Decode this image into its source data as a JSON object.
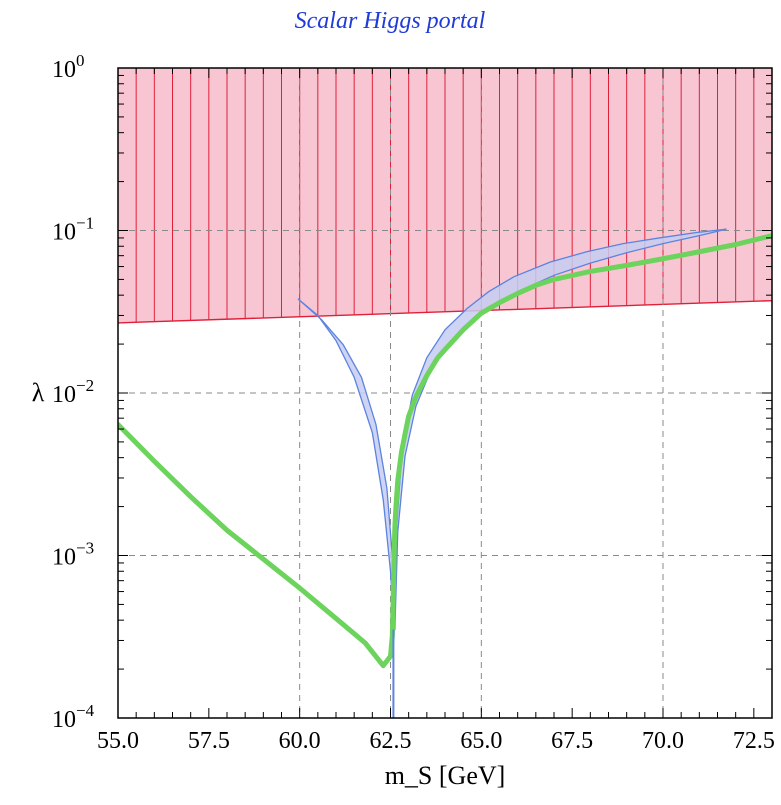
{
  "chart_data": {
    "type": "line",
    "title": "Scalar Higgs portal",
    "xlabel": "m_S [GeV]",
    "ylabel": "λ",
    "xlim": [
      55.0,
      73.0
    ],
    "ylim": [
      0.0001,
      1.0
    ],
    "yscale": "log",
    "grid": true,
    "x_ticks": [
      "55.0",
      "57.5",
      "60.0",
      "62.5",
      "65.0",
      "67.5",
      "70.0",
      "72.5"
    ],
    "y_ticks": [
      {
        "base": "10",
        "exp": "0"
      },
      {
        "base": "10",
        "exp": "−1"
      },
      {
        "base": "10",
        "exp": "−2"
      },
      {
        "base": "10",
        "exp": "−3"
      },
      {
        "base": "10",
        "exp": "−4"
      }
    ],
    "colors": {
      "excluded_fill": "#f7c6d2",
      "excluded_edge": "#e0203a",
      "band_fill": "#c7cdf2",
      "band_edge": "#5b83e0",
      "green_line": "#6cd35c"
    },
    "series": [
      {
        "role": "excluded_region_lower_boundary",
        "x": [
          55.0,
          73.0
        ],
        "y": [
          0.027,
          0.037
        ]
      },
      {
        "role": "green_line",
        "x": [
          55.0,
          56.0,
          57.0,
          58.0,
          59.0,
          60.0,
          61.0,
          61.8,
          62.3,
          62.5,
          62.55,
          62.6,
          62.62,
          62.65,
          62.7,
          62.8,
          62.9,
          63.0,
          63.2,
          63.5,
          63.8,
          64.0,
          64.5,
          65.0,
          65.5,
          66.0,
          66.5,
          67.0,
          68.0,
          69.0,
          70.0,
          71.0,
          72.0,
          73.0
        ],
        "y": [
          0.0064,
          0.0038,
          0.0023,
          0.00143,
          0.00095,
          0.00063,
          0.00041,
          0.00029,
          0.00021,
          0.00024,
          0.00032,
          0.001,
          0.0015,
          0.002,
          0.0029,
          0.0043,
          0.0056,
          0.0072,
          0.0095,
          0.0128,
          0.0165,
          0.0185,
          0.0245,
          0.031,
          0.036,
          0.041,
          0.046,
          0.05,
          0.056,
          0.061,
          0.067,
          0.074,
          0.082,
          0.093
        ]
      },
      {
        "role": "blue_band_left_outer",
        "x": [
          59.95,
          60.5,
          61.0,
          61.5,
          62.0,
          62.3,
          62.5,
          62.6
        ],
        "y": [
          0.038,
          0.03,
          0.021,
          0.0125,
          0.0057,
          0.0022,
          0.0008,
          0.00035
        ]
      },
      {
        "role": "blue_band_left_inner",
        "x": [
          62.62,
          62.55,
          62.4,
          62.1,
          61.7,
          61.2,
          60.6,
          59.95
        ],
        "y": [
          0.00035,
          0.001,
          0.0026,
          0.0064,
          0.0125,
          0.0198,
          0.0283,
          0.038
        ]
      },
      {
        "role": "blue_band_right_lower",
        "x": [
          62.62,
          62.7,
          62.9,
          63.2,
          63.6,
          64.1,
          64.7,
          65.3,
          66.0,
          67.0,
          68.0,
          69.0,
          70.0,
          71.0,
          71.75
        ],
        "y": [
          0.00035,
          0.0014,
          0.0041,
          0.0083,
          0.0136,
          0.02,
          0.027,
          0.034,
          0.042,
          0.053,
          0.063,
          0.073,
          0.083,
          0.093,
          0.102
        ]
      },
      {
        "role": "blue_band_right_upper",
        "x": [
          62.62,
          62.66,
          62.82,
          63.1,
          63.5,
          64.0,
          64.6,
          65.2,
          65.9,
          66.9,
          67.9,
          68.9,
          69.9,
          70.9,
          71.75
        ],
        "y": [
          0.00035,
          0.0014,
          0.0046,
          0.0097,
          0.0165,
          0.0245,
          0.033,
          0.042,
          0.052,
          0.064,
          0.074,
          0.083,
          0.09,
          0.097,
          0.102
        ]
      },
      {
        "role": "blue_vertical_line",
        "x": [
          62.58,
          62.58
        ],
        "y": [
          0.0001,
          0.00035
        ]
      }
    ]
  }
}
